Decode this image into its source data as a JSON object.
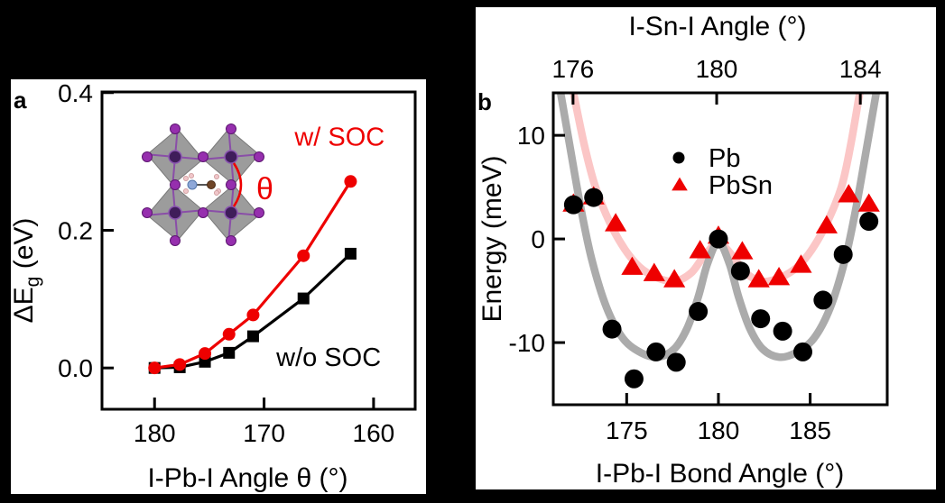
{
  "figure": {
    "background": "#000000",
    "panel_background": "#ffffff",
    "panels": [
      {
        "letter": "a"
      },
      {
        "letter": "b"
      }
    ]
  },
  "colors": {
    "accent_red": "#ee0000",
    "black": "#000000",
    "pb_fit_gray": "#ababab",
    "pbsn_fit_pink": "#fbc6c6"
  },
  "chart_data": [
    {
      "id": "panel-a",
      "type": "line",
      "xlabel": "I-Pb-I Angle θ (°)",
      "ylabel": "ΔEg (eV)",
      "ylabel_parts": [
        {
          "text": "ΔE"
        },
        {
          "text": "g",
          "sub": true
        },
        {
          "text": " (eV)"
        }
      ],
      "x_axis_reversed": true,
      "xlim": [
        184.8,
        156.2
      ],
      "ylim": [
        -0.06,
        0.401
      ],
      "x_ticks": [
        {
          "v": 180,
          "label": "180"
        },
        {
          "v": 170,
          "label": "170"
        },
        {
          "v": 160,
          "label": "160"
        }
      ],
      "y_ticks": [
        {
          "v": 0.0,
          "label": "0.0"
        },
        {
          "v": 0.2,
          "label": "0.2"
        },
        {
          "v": 0.4,
          "label": "0.4"
        }
      ],
      "series": [
        {
          "name": "w/o SOC",
          "marker": "square",
          "color": "#000000",
          "z": 1,
          "x": [
            180,
            177.7,
            175.4,
            173.2,
            171.0,
            166.4,
            162.1
          ],
          "y": [
            0.0,
            0.001,
            0.009,
            0.022,
            0.046,
            0.101,
            0.166
          ]
        },
        {
          "name": "w/ SOC",
          "marker": "circle",
          "color": "#ee0000",
          "z": 2,
          "x": [
            180,
            177.7,
            175.4,
            173.2,
            171.0,
            166.4,
            162.1
          ],
          "y": [
            0.0,
            0.005,
            0.021,
            0.049,
            0.077,
            0.163,
            0.271
          ]
        }
      ],
      "annotations": [
        {
          "text": "w/ SOC",
          "x": 163.1,
          "y": 0.336,
          "color": "#ee0000"
        },
        {
          "text": "w/o SOC",
          "x": 164.1,
          "y": 0.016,
          "color": "#000000"
        }
      ],
      "inset": {
        "description": "corner-sharing PbI6 octahedra (2x2) with CH3NH3 molecule in cavity and I-Pb-I tilt angle marked",
        "theta_label": "θ",
        "palette": {
          "octahedra": "#9c9c9c",
          "octahedra_edge": "#7a7a7a",
          "iodine": "#962fae",
          "iodine_edge": "#5c1570",
          "lead_center": "#3f1d5a",
          "lead_edge": "#8a55b0",
          "bond": "#8a4ea8",
          "nitrogen": "#8fa8d8",
          "carbon": "#6e4426",
          "hydrogen": "#f0c6ca",
          "theta_color": "#ee0000"
        }
      }
    },
    {
      "id": "panel-b",
      "type": "scatter",
      "xlabel": "I-Pb-I Bond Angle (°)",
      "top_xlabel": "I-Sn-I Angle (°)",
      "ylabel": "Energy (meV)",
      "xlim": [
        171.0,
        189.2
      ],
      "top_xlim": [
        175.45,
        184.75
      ],
      "ylim": [
        -16.0,
        14.1
      ],
      "x_ticks": [
        {
          "v": 175,
          "label": "175"
        },
        {
          "v": 180,
          "label": "180"
        },
        {
          "v": 185,
          "label": "185"
        }
      ],
      "top_x_ticks": [
        {
          "v": 176,
          "label": "176"
        },
        {
          "v": 180,
          "label": "180"
        },
        {
          "v": 184,
          "label": "184"
        }
      ],
      "y_ticks": [
        {
          "v": 10,
          "label": "10"
        },
        {
          "v": 0,
          "label": "0"
        },
        {
          "v": -10,
          "label": "-10"
        }
      ],
      "series": [
        {
          "name": "Pb",
          "marker": "circle",
          "color": "#000000",
          "z": 2,
          "x": [
            172.1,
            173.2,
            174.2,
            175.4,
            176.6,
            177.7,
            178.9,
            180.0,
            181.2,
            182.3,
            183.5,
            184.6,
            185.7,
            186.8,
            188.2
          ],
          "y": [
            3.3,
            4.0,
            -8.7,
            -13.5,
            -10.9,
            -11.9,
            -7.0,
            0.0,
            -3.1,
            -7.7,
            -8.9,
            -10.9,
            -5.9,
            -1.5,
            1.7
          ]
        },
        {
          "name": "PbSn",
          "marker": "triangle",
          "color": "#ee0000",
          "z": 1,
          "x": [
            172.1,
            173.2,
            174.4,
            175.3,
            176.5,
            177.6,
            179.0,
            180.0,
            181.3,
            182.2,
            183.3,
            184.5,
            185.9,
            187.1,
            188.2
          ],
          "y": [
            3.4,
            4.1,
            1.5,
            -2.7,
            -3.3,
            -3.9,
            -1.1,
            0.3,
            -1.2,
            -3.9,
            -3.7,
            -2.5,
            1.3,
            4.3,
            3.4
          ]
        }
      ],
      "fit_curves": [
        {
          "for": "PbSn",
          "color": "#fbc6c6",
          "x": [
            172.1,
            172.7,
            173.3,
            174.1,
            174.9,
            175.7,
            176.6,
            177.6,
            178.5,
            179.2,
            180.0,
            180.8,
            181.5,
            182.4,
            183.4,
            184.3,
            185.1,
            185.9,
            186.7,
            187.2,
            187.7
          ],
          "y": [
            14.1,
            9.0,
            5.0,
            1.5,
            -1.0,
            -2.7,
            -3.7,
            -4.1,
            -3.3,
            -1.7,
            -0.4,
            -1.7,
            -3.3,
            -4.1,
            -3.7,
            -2.7,
            -1.0,
            1.5,
            5.0,
            9.0,
            14.1
          ]
        },
        {
          "for": "Pb",
          "color": "#ababab",
          "x": [
            171.4,
            171.9,
            172.5,
            173.1,
            173.9,
            174.8,
            175.8,
            176.7,
            177.6,
            178.3,
            178.9,
            179.4,
            180.0,
            180.6,
            181.1,
            181.7,
            182.4,
            183.3,
            184.2,
            185.2,
            186.1,
            186.9,
            187.5,
            188.1,
            188.6
          ],
          "y": [
            14.1,
            9.0,
            3.0,
            -2.0,
            -6.6,
            -9.6,
            -11.0,
            -11.4,
            -10.6,
            -8.6,
            -5.6,
            -2.4,
            -0.3,
            -2.4,
            -5.6,
            -8.6,
            -10.6,
            -11.4,
            -11.0,
            -9.6,
            -6.6,
            -2.0,
            3.0,
            9.0,
            14.1
          ]
        }
      ],
      "legend": {
        "entries": [
          {
            "label": "Pb",
            "marker": "circle",
            "color": "#000000"
          },
          {
            "label": "PbSn",
            "marker": "triangle",
            "color": "#ee0000"
          }
        ]
      }
    }
  ]
}
